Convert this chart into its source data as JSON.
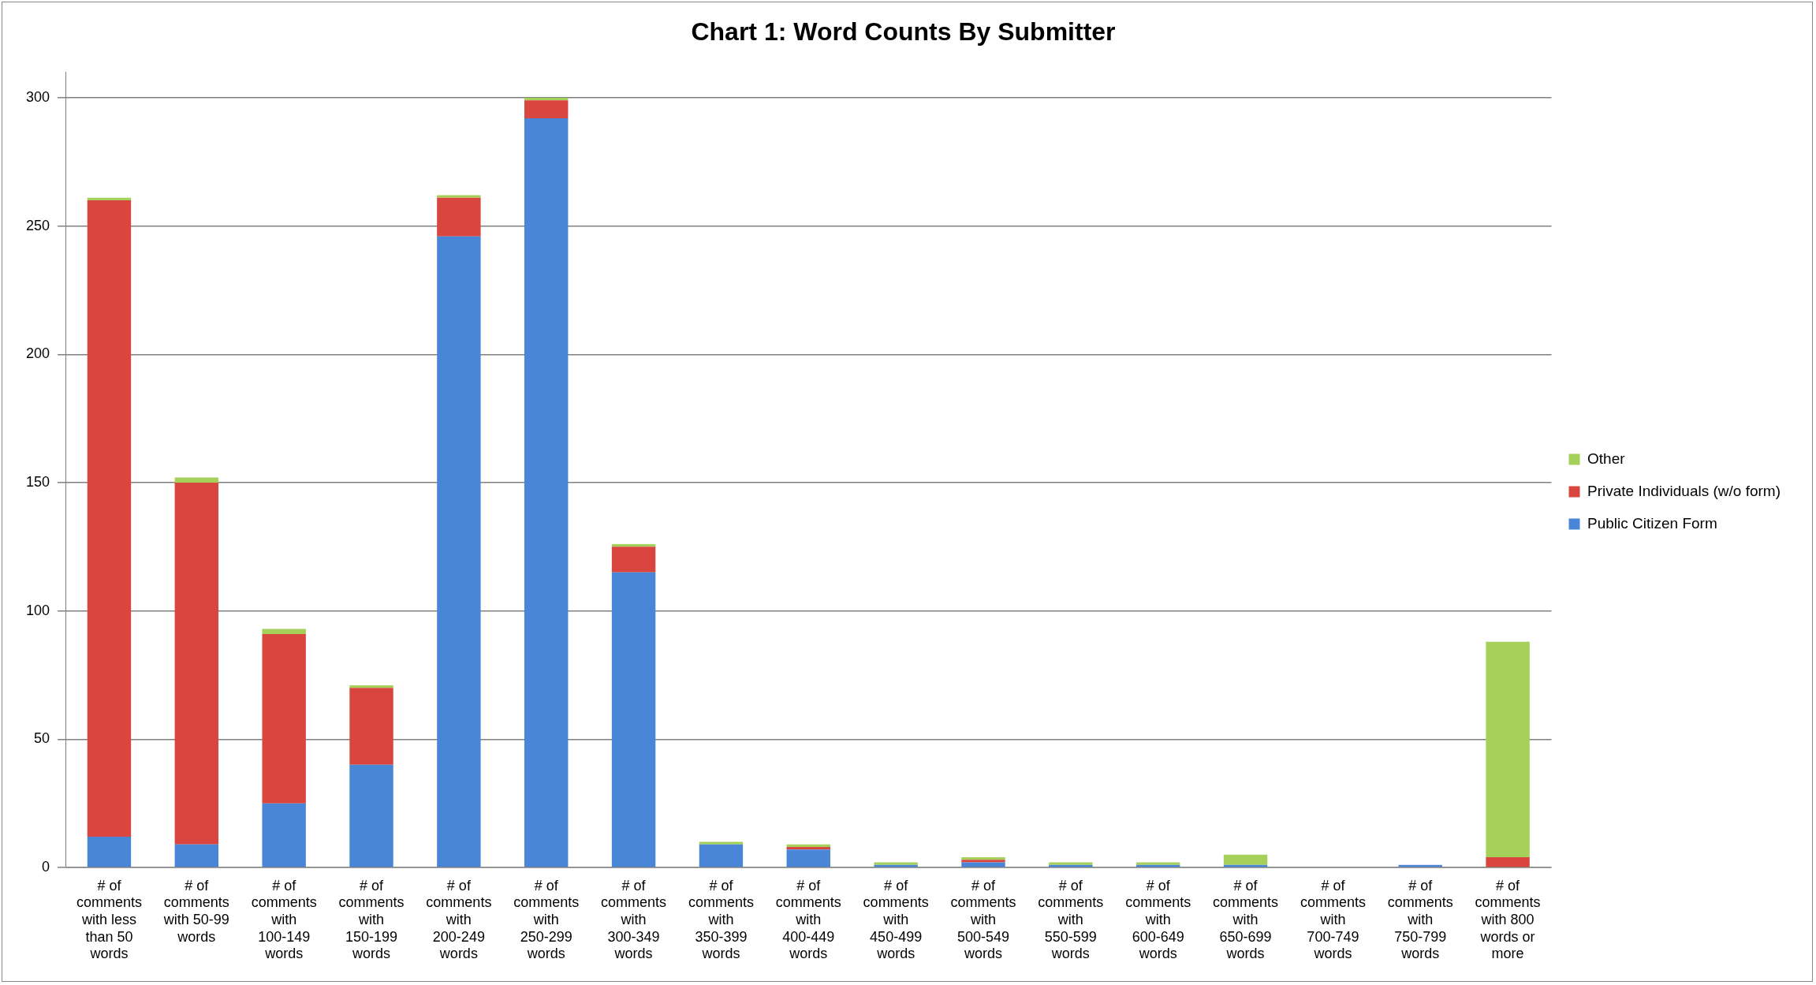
{
  "chart_data": {
    "type": "bar",
    "title": "Chart 1: Word Counts By Submitter",
    "stacked": true,
    "categories": [
      "# of comments with less than 50 words",
      "# of comments with 50-99 words",
      "# of comments with 100-149 words",
      "# of comments with 150-199 words",
      "# of comments with 200-249 words",
      "# of comments with 250-299 words",
      "# of comments with 300-349 words",
      "# of comments with 350-399 words",
      "# of comments with 400-449 words",
      "# of comments with 450-499 words",
      "# of comments with 500-549 words",
      "# of comments with 550-599 words",
      "# of comments with 600-649 words",
      "# of comments with 650-699 words",
      "# of comments with 700-749 words",
      "# of comments with 750-799 words",
      "# of comments with 800 words or more"
    ],
    "series": [
      {
        "name": "Public Citizen Form",
        "color": "#4a86d8",
        "values": [
          12,
          9,
          25,
          40,
          246,
          292,
          115,
          9,
          7,
          1,
          2,
          1,
          1,
          1,
          0,
          1,
          0
        ]
      },
      {
        "name": "Private Individuals (w/o form)",
        "color": "#d9453f",
        "values": [
          248,
          141,
          66,
          30,
          15,
          7,
          10,
          0,
          1,
          0,
          1,
          0,
          0,
          0,
          0,
          0,
          4
        ]
      },
      {
        "name": "Other",
        "color": "#a5d05a",
        "values": [
          1,
          2,
          2,
          1,
          1,
          1,
          1,
          1,
          1,
          1,
          1,
          1,
          1,
          4,
          0,
          0,
          84
        ]
      }
    ],
    "ylim": [
      0,
      310
    ],
    "yticks": [
      0,
      50,
      100,
      150,
      200,
      250,
      300
    ],
    "grid": "y",
    "legend": "right"
  }
}
